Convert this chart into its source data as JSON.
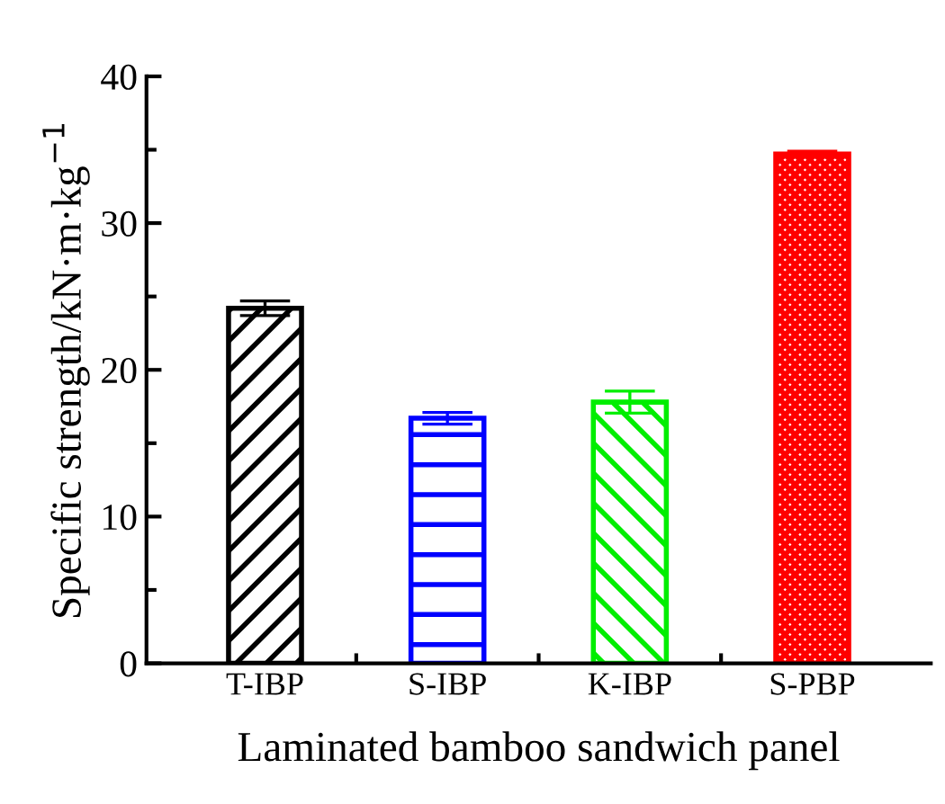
{
  "chart_data": {
    "type": "bar",
    "xlabel": "Laminated bamboo sandwich panel",
    "ylabel": "Specific strength/kN·m·kg$^{−1}$",
    "categories": [
      "T-IBP",
      "S-IBP",
      "K-IBP",
      "S-PBP"
    ],
    "values": [
      24.2,
      16.7,
      17.8,
      34.7
    ],
    "errors": [
      0.5,
      0.4,
      0.75,
      0.2
    ],
    "colors": [
      "#000000",
      "#0000ff",
      "#00ee00",
      "#ff0000"
    ],
    "ylim": [
      0,
      40
    ],
    "yticks": [
      0,
      10,
      20,
      30,
      40
    ],
    "grid": false,
    "legend": false
  }
}
